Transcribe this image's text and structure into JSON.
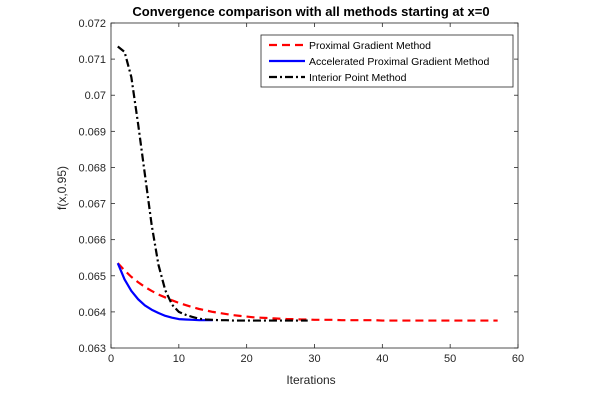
{
  "chart_data": {
    "type": "line",
    "title": "Convergence comparison with all methods starting at x=0",
    "xlabel": "Iterations",
    "ylabel": "f(x,0.95)",
    "xlim": [
      0,
      60
    ],
    "ylim": [
      0.063,
      0.072
    ],
    "xticks": [
      0,
      10,
      20,
      30,
      40,
      50,
      60
    ],
    "yticks": [
      0.063,
      0.064,
      0.065,
      0.066,
      0.067,
      0.068,
      0.069,
      0.07,
      0.071,
      0.072
    ],
    "xtick_labels": [
      "0",
      "10",
      "20",
      "30",
      "40",
      "50",
      "60"
    ],
    "ytick_labels": [
      "0.063",
      "0.064",
      "0.065",
      "0.066",
      "0.067",
      "0.068",
      "0.069",
      "0.07",
      "0.071",
      "0.072"
    ],
    "grid": true,
    "legend_position": "top-right",
    "series": [
      {
        "name": "Proximal Gradient Method",
        "color": "#ff0000",
        "line_style": "dashed",
        "x": [
          1,
          2,
          3,
          4,
          5,
          6,
          7,
          8,
          9,
          10,
          11,
          12,
          13,
          14,
          15,
          16,
          17,
          18,
          19,
          20,
          21,
          22,
          23,
          24,
          25,
          26,
          27,
          28,
          29,
          30,
          31,
          32,
          33,
          34,
          35,
          36,
          37,
          38,
          39,
          40,
          41,
          42,
          43,
          44,
          45,
          46,
          47,
          48,
          49,
          50,
          51,
          52,
          53,
          54,
          55,
          56,
          57
        ],
        "y": [
          0.06535,
          0.06515,
          0.06497,
          0.06482,
          0.06469,
          0.06458,
          0.06448,
          0.0644,
          0.06432,
          0.06425,
          0.06419,
          0.06413,
          0.06408,
          0.06404,
          0.064,
          0.06397,
          0.06394,
          0.06391,
          0.06389,
          0.06387,
          0.06385,
          0.06384,
          0.06383,
          0.06382,
          0.06381,
          0.0638,
          0.0638,
          0.06379,
          0.06379,
          0.06378,
          0.06378,
          0.06378,
          0.06378,
          0.06377,
          0.06377,
          0.06377,
          0.06377,
          0.06377,
          0.06377,
          0.06376,
          0.06376,
          0.06376,
          0.06376,
          0.06376,
          0.06376,
          0.06376,
          0.06376,
          0.06376,
          0.06376,
          0.06376,
          0.06376,
          0.06376,
          0.06376,
          0.06376,
          0.06376,
          0.06376,
          0.06376
        ]
      },
      {
        "name": "Accelerated Proximal Gradient Method",
        "color": "#0000ff",
        "line_style": "solid",
        "x": [
          1,
          2,
          3,
          4,
          5,
          6,
          7,
          8,
          9,
          10,
          11,
          12,
          13,
          14,
          15
        ],
        "y": [
          0.06535,
          0.0649,
          0.06458,
          0.06435,
          0.06418,
          0.06406,
          0.06397,
          0.06389,
          0.06384,
          0.0638,
          0.06379,
          0.06378,
          0.06377,
          0.06377,
          0.06377
        ]
      },
      {
        "name": "Interior Point Method",
        "color": "#000000",
        "line_style": "dashdot",
        "x": [
          1,
          2,
          3,
          4,
          5,
          6,
          7,
          8,
          9,
          10,
          11,
          12,
          13,
          14,
          15,
          16,
          17,
          18,
          19,
          20,
          21,
          22,
          23,
          24,
          25,
          26,
          27,
          28,
          29
        ],
        "y": [
          0.07135,
          0.0712,
          0.0705,
          0.0692,
          0.0678,
          0.0664,
          0.0653,
          0.0646,
          0.0642,
          0.064,
          0.06392,
          0.06386,
          0.06381,
          0.06379,
          0.06378,
          0.06377,
          0.06377,
          0.06376,
          0.06376,
          0.06376,
          0.06376,
          0.06376,
          0.06376,
          0.06376,
          0.06376,
          0.06376,
          0.06376,
          0.06376,
          0.06376
        ]
      }
    ]
  }
}
